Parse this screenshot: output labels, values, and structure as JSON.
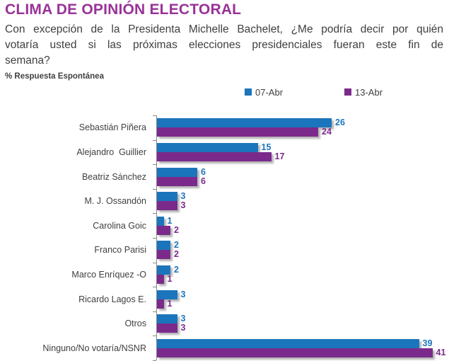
{
  "title": "CLIMA DE OPINIÓN ELECTORAL",
  "question_lines": [
    "Con excepción de la Presidenta Michelle Bachelet, ¿Me podría decir por quién",
    "votaría usted si las próximas elecciones presidenciales fueran este fin de",
    "semana?"
  ],
  "note": "% Respuesta Espontánea",
  "colors": {
    "title": "#993299",
    "body_text": "#404040",
    "axis": "#898989",
    "series1": "#1B75BC",
    "series2": "#7B2A8C"
  },
  "chart_data": {
    "type": "bar",
    "orientation": "horizontal",
    "title": "",
    "xlabel": "",
    "ylabel": "",
    "xlim": [
      0,
      45
    ],
    "grid": false,
    "legend_position": "top",
    "data_labels": true,
    "categories": [
      "Sebastián Piñera",
      "Alejandro  Guillier",
      "Beatriz Sánchez",
      "M. J. Ossandón",
      "Carolina Goic",
      "Franco Parisi",
      "Marco Enríquez -O",
      "Ricardo Lagos E.",
      "Otros",
      "Ninguno/No votaría/NSNR"
    ],
    "series": [
      {
        "name": "07-Abr",
        "color": "#1B75BC",
        "values": [
          26,
          15,
          6,
          3,
          1,
          2,
          2,
          3,
          3,
          39
        ]
      },
      {
        "name": "13-Abr",
        "color": "#7B2A8C",
        "values": [
          24,
          17,
          6,
          3,
          2,
          2,
          1,
          1,
          3,
          41
        ]
      }
    ]
  }
}
